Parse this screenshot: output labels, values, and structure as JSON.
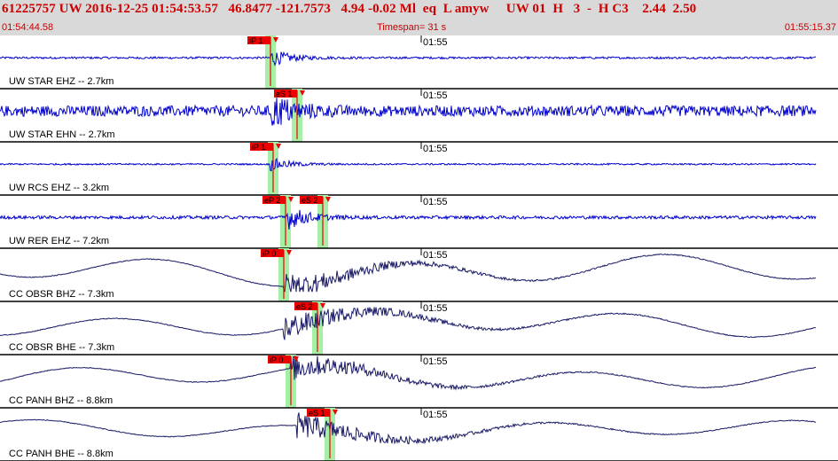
{
  "header": {
    "title": "61225757 UW 2016-12-25 01:54:53.57   46.8477 -121.7573   4.94 -0.02 Ml  eq  L amyw     UW 01  H   3  -  H C3    2.44  2.50",
    "start_time": "01:54:44.58",
    "timespan": "Timespan=  31 s",
    "end_time": "01:55:15.37"
  },
  "colors": {
    "header_bg": "#d9d9d9",
    "header_text": "#cc0000",
    "trace_broadband": "#0000cc",
    "trace_long": "#1a1a66",
    "pick_window": "#a6f0a6",
    "pick_marker": "#ee0000"
  },
  "channels": [
    {
      "label": "UW STAR EHZ -- 2.7km",
      "tick": "01:55",
      "kind": "short",
      "amp": 0.08,
      "picks": [
        {
          "label": "iP 1",
          "type": "P"
        }
      ]
    },
    {
      "label": "UW STAR EHN -- 2.7km",
      "tick": "01:55",
      "kind": "short",
      "amp": 0.2,
      "picks": [
        {
          "label": "eS 1",
          "type": "S"
        }
      ]
    },
    {
      "label": "UW RCS EHZ -- 3.2km",
      "tick": "01:55",
      "kind": "short",
      "amp": 0.06,
      "picks": [
        {
          "label": "iP 1",
          "type": "P"
        }
      ]
    },
    {
      "label": "UW RER EHZ -- 7.2km",
      "tick": "01:55",
      "kind": "short",
      "amp": 0.12,
      "picks": [
        {
          "label": "eP 2",
          "type": "P"
        },
        {
          "label": "eS 2",
          "type": "S"
        }
      ]
    },
    {
      "label": "CC OBSR BHZ -- 7.3km",
      "tick": "01:55",
      "kind": "long",
      "amp": 0.7,
      "picks": [
        {
          "label": "iP 0",
          "type": "P"
        }
      ]
    },
    {
      "label": "CC OBSR BHE -- 7.3km",
      "tick": "01:55",
      "kind": "long",
      "amp": 0.6,
      "picks": [
        {
          "label": "eS 2",
          "type": "S"
        }
      ]
    },
    {
      "label": "CC PANH BHZ -- 8.8km",
      "tick": "01:55",
      "kind": "long",
      "amp": 0.55,
      "picks": [
        {
          "label": "iP 0",
          "type": "P"
        }
      ]
    },
    {
      "label": "CC PANH BHE -- 8.8km",
      "tick": "01:55",
      "kind": "long",
      "amp": 0.45,
      "picks": [
        {
          "label": "eS 1",
          "type": "S"
        }
      ]
    }
  ]
}
